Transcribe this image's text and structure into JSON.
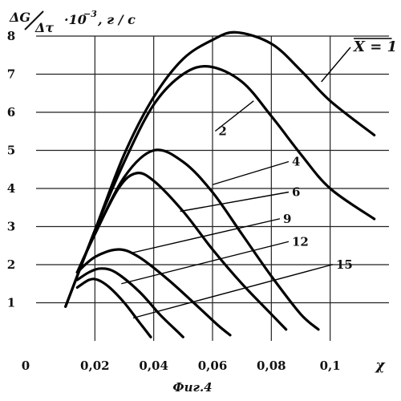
{
  "chart_data": {
    "type": "line",
    "ylabel_main": "ΔG",
    "ylabel_den": "Δτ",
    "ylabel_rest": "·10",
    "ylabel_exp": "−3",
    "ylabel_unit": ", г / с",
    "xlabel": "χ",
    "caption": "Фиг.4",
    "xlim": [
      0,
      0.12
    ],
    "ylim": [
      0,
      8
    ],
    "x_ticks": [
      {
        "value": 0.02,
        "label": "0,02"
      },
      {
        "value": 0.04,
        "label": "0,04"
      },
      {
        "value": 0.06,
        "label": "0,06"
      },
      {
        "value": 0.08,
        "label": "0,08"
      },
      {
        "value": 0.1,
        "label": "0,1"
      }
    ],
    "origin_label": "0",
    "y_ticks": [
      {
        "value": 1,
        "label": "1"
      },
      {
        "value": 2,
        "label": "2"
      },
      {
        "value": 3,
        "label": "3"
      },
      {
        "value": 4,
        "label": "4"
      },
      {
        "value": 5,
        "label": "5"
      },
      {
        "value": 6,
        "label": "6"
      },
      {
        "value": 7,
        "label": "7"
      },
      {
        "value": 8,
        "label": "8"
      }
    ],
    "grid": true,
    "series": [
      {
        "name": "X = 1",
        "points": [
          [
            0.01,
            0.9
          ],
          [
            0.02,
            2.9
          ],
          [
            0.03,
            4.9
          ],
          [
            0.04,
            6.4
          ],
          [
            0.05,
            7.4
          ],
          [
            0.06,
            7.9
          ],
          [
            0.068,
            8.1
          ],
          [
            0.08,
            7.8
          ],
          [
            0.09,
            7.1
          ],
          [
            0.1,
            6.3
          ],
          [
            0.115,
            5.4
          ]
        ]
      },
      {
        "name": "2",
        "points": [
          [
            0.01,
            0.9
          ],
          [
            0.02,
            2.9
          ],
          [
            0.03,
            4.7
          ],
          [
            0.04,
            6.2
          ],
          [
            0.05,
            7.0
          ],
          [
            0.059,
            7.2
          ],
          [
            0.07,
            6.8
          ],
          [
            0.08,
            5.9
          ],
          [
            0.09,
            4.9
          ],
          [
            0.1,
            4.0
          ],
          [
            0.115,
            3.2
          ]
        ]
      },
      {
        "name": "4",
        "points": [
          [
            0.014,
            1.8
          ],
          [
            0.02,
            2.8
          ],
          [
            0.03,
            4.3
          ],
          [
            0.04,
            5.0
          ],
          [
            0.05,
            4.7
          ],
          [
            0.06,
            3.9
          ],
          [
            0.07,
            2.8
          ],
          [
            0.08,
            1.7
          ],
          [
            0.09,
            0.7
          ],
          [
            0.096,
            0.3
          ]
        ]
      },
      {
        "name": "6",
        "points": [
          [
            0.014,
            1.8
          ],
          [
            0.02,
            2.8
          ],
          [
            0.028,
            4.0
          ],
          [
            0.034,
            4.4
          ],
          [
            0.04,
            4.2
          ],
          [
            0.05,
            3.4
          ],
          [
            0.06,
            2.4
          ],
          [
            0.07,
            1.5
          ],
          [
            0.08,
            0.7
          ],
          [
            0.085,
            0.3
          ]
        ]
      },
      {
        "name": "9",
        "points": [
          [
            0.014,
            1.8
          ],
          [
            0.02,
            2.2
          ],
          [
            0.028,
            2.4
          ],
          [
            0.035,
            2.2
          ],
          [
            0.045,
            1.6
          ],
          [
            0.055,
            0.9
          ],
          [
            0.062,
            0.4
          ],
          [
            0.066,
            0.15
          ]
        ]
      },
      {
        "name": "12",
        "points": [
          [
            0.014,
            1.6
          ],
          [
            0.018,
            1.8
          ],
          [
            0.022,
            1.9
          ],
          [
            0.027,
            1.8
          ],
          [
            0.035,
            1.3
          ],
          [
            0.042,
            0.7
          ],
          [
            0.048,
            0.25
          ],
          [
            0.05,
            0.1
          ]
        ]
      },
      {
        "name": "15",
        "points": [
          [
            0.014,
            1.4
          ],
          [
            0.018,
            1.6
          ],
          [
            0.021,
            1.6
          ],
          [
            0.025,
            1.4
          ],
          [
            0.03,
            1.0
          ],
          [
            0.035,
            0.5
          ],
          [
            0.038,
            0.2
          ],
          [
            0.039,
            0.1
          ]
        ]
      }
    ],
    "annotations": [
      {
        "text": "X = 1",
        "series": "X = 1",
        "x": 0.108,
        "y": 7.6,
        "anchor_x": 0.097,
        "anchor_y": 6.8,
        "overline": true
      },
      {
        "text": "2",
        "series": "2",
        "x": 0.062,
        "y": 5.4,
        "anchor_x": 0.074,
        "anchor_y": 6.3
      },
      {
        "text": "4",
        "series": "4",
        "x": 0.087,
        "y": 4.6,
        "anchor_x": 0.06,
        "anchor_y": 4.1
      },
      {
        "text": "6",
        "series": "6",
        "x": 0.087,
        "y": 3.8,
        "anchor_x": 0.049,
        "anchor_y": 3.4
      },
      {
        "text": "9",
        "series": "9",
        "x": 0.084,
        "y": 3.1,
        "anchor_x": 0.032,
        "anchor_y": 2.3
      },
      {
        "text": "12",
        "series": "12",
        "x": 0.087,
        "y": 2.5,
        "anchor_x": 0.029,
        "anchor_y": 1.5
      },
      {
        "text": "15",
        "series": "15",
        "x": 0.102,
        "y": 1.9,
        "anchor_x": 0.033,
        "anchor_y": 0.6
      }
    ]
  }
}
